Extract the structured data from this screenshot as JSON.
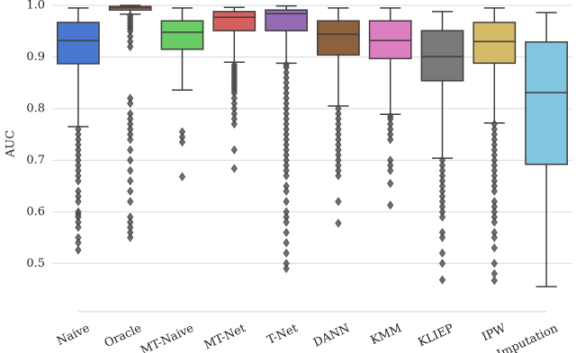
{
  "chart_data": {
    "type": "box",
    "ylabel": "AUC",
    "ylim": [
      0.41,
      1.0
    ],
    "yticks": [
      0.5,
      0.6,
      0.7,
      0.8,
      0.9,
      {
        "value": 1,
        "label": "1.0"
      }
    ],
    "grid": true,
    "boxes": [
      {
        "category": "Naive",
        "color": "#4878d0",
        "whislo": 0.765,
        "q1": 0.887,
        "med": 0.932,
        "q3": 0.967,
        "whishi": 0.995,
        "fliers": [
          0.76,
          0.75,
          0.74,
          0.73,
          0.72,
          0.71,
          0.7,
          0.69,
          0.68,
          0.67,
          0.66,
          0.64,
          0.63,
          0.62,
          0.6,
          0.595,
          0.59,
          0.58,
          0.57,
          0.55,
          0.54,
          0.526
        ]
      },
      {
        "category": "Oracle",
        "color": "#ee854a",
        "whislo": 0.983,
        "q1": 0.991,
        "med": 0.995,
        "q3": 0.998,
        "whishi": 1,
        "fliers": [
          0.98,
          0.975,
          0.97,
          0.965,
          0.96,
          0.955,
          0.95,
          0.94,
          0.93,
          0.92,
          0.82,
          0.81,
          0.79,
          0.78,
          0.77,
          0.76,
          0.75,
          0.74,
          0.72,
          0.7,
          0.68,
          0.66,
          0.64,
          0.62,
          0.59,
          0.58,
          0.57,
          0.56,
          0.55
        ]
      },
      {
        "category": "MT-Naive",
        "color": "#6acc64",
        "whislo": 0.836,
        "q1": 0.915,
        "med": 0.948,
        "q3": 0.97,
        "whishi": 0.995,
        "fliers": [
          0.755,
          0.745,
          0.735,
          0.668
        ]
      },
      {
        "category": "MT-Net",
        "color": "#d65f5f",
        "whislo": 0.89,
        "q1": 0.951,
        "med": 0.977,
        "q3": 0.988,
        "whishi": 0.996,
        "fliers": [
          0.885,
          0.88,
          0.875,
          0.87,
          0.865,
          0.86,
          0.855,
          0.85,
          0.845,
          0.84,
          0.835,
          0.83,
          0.82,
          0.81,
          0.8,
          0.79,
          0.78,
          0.77,
          0.72,
          0.684
        ]
      },
      {
        "category": "T-Net",
        "color": "#956cb4",
        "whislo": 0.888,
        "q1": 0.951,
        "med": 0.984,
        "q3": 0.991,
        "whishi": 0.999,
        "fliers": [
          0.885,
          0.88,
          0.87,
          0.86,
          0.85,
          0.84,
          0.83,
          0.82,
          0.81,
          0.8,
          0.79,
          0.78,
          0.77,
          0.76,
          0.75,
          0.74,
          0.73,
          0.72,
          0.71,
          0.7,
          0.69,
          0.68,
          0.67,
          0.65,
          0.64,
          0.62,
          0.6,
          0.59,
          0.58,
          0.56,
          0.54,
          0.52,
          0.5,
          0.49
        ]
      },
      {
        "category": "DANN",
        "color": "#8c613c",
        "whislo": 0.805,
        "q1": 0.904,
        "med": 0.944,
        "q3": 0.97,
        "whishi": 0.995,
        "fliers": [
          0.8,
          0.79,
          0.78,
          0.77,
          0.76,
          0.75,
          0.74,
          0.73,
          0.72,
          0.71,
          0.7,
          0.69,
          0.68,
          0.67,
          0.62,
          0.578
        ]
      },
      {
        "category": "KMM",
        "color": "#dc7ec0",
        "whislo": 0.789,
        "q1": 0.897,
        "med": 0.932,
        "q3": 0.97,
        "whishi": 0.995,
        "fliers": [
          0.785,
          0.78,
          0.77,
          0.76,
          0.75,
          0.74,
          0.7,
          0.69,
          0.68,
          0.655,
          0.613
        ]
      },
      {
        "category": "KLIEP",
        "color": "#797979",
        "whislo": 0.704,
        "q1": 0.854,
        "med": 0.901,
        "q3": 0.951,
        "whishi": 0.988,
        "fliers": [
          0.7,
          0.69,
          0.68,
          0.67,
          0.66,
          0.65,
          0.64,
          0.63,
          0.62,
          0.61,
          0.6,
          0.59,
          0.56,
          0.55,
          0.52,
          0.5,
          0.468
        ]
      },
      {
        "category": "IPW",
        "color": "#d5bb67",
        "whislo": 0.772,
        "q1": 0.888,
        "med": 0.93,
        "q3": 0.967,
        "whishi": 0.995,
        "fliers": [
          0.77,
          0.76,
          0.75,
          0.74,
          0.73,
          0.72,
          0.71,
          0.7,
          0.69,
          0.68,
          0.67,
          0.66,
          0.65,
          0.64,
          0.62,
          0.61,
          0.6,
          0.59,
          0.58,
          0.56,
          0.55,
          0.53,
          0.5,
          0.48,
          0.467
        ]
      },
      {
        "category": "Imputation",
        "color": "#82c6e2",
        "whislo": 0.455,
        "q1": 0.692,
        "med": 0.831,
        "q3": 0.929,
        "whishi": 0.986,
        "fliers": []
      }
    ]
  }
}
